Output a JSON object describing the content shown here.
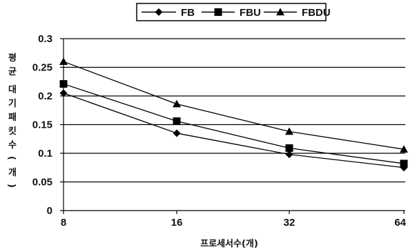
{
  "chart_data": {
    "type": "line",
    "title": "",
    "xlabel": "프로세서수(개)",
    "ylabel": "평균 대기패킷수(개)",
    "categories": [
      "8",
      "16",
      "32",
      "64"
    ],
    "ylim": [
      0,
      0.3
    ],
    "yticks": [
      "0",
      "0.05",
      "0.1",
      "0.15",
      "0.2",
      "0.25",
      "0.3"
    ],
    "grid": "horizontal",
    "legend_position": "top",
    "series": [
      {
        "name": "FB",
        "marker": "diamond",
        "values": [
          0.205,
          0.135,
          0.098,
          0.075
        ]
      },
      {
        "name": "FBU",
        "marker": "square",
        "values": [
          0.221,
          0.156,
          0.109,
          0.082
        ]
      },
      {
        "name": "FBDU",
        "marker": "triangle",
        "values": [
          0.26,
          0.186,
          0.138,
          0.107
        ]
      }
    ]
  }
}
